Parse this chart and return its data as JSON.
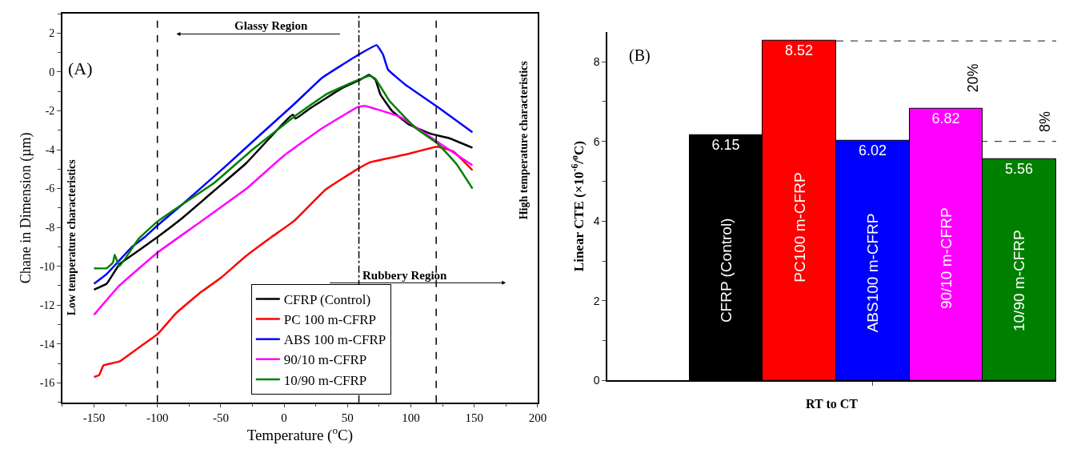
{
  "chart_data": [
    {
      "type": "line",
      "xlabel": "Temperature ($^{o}$C)",
      "ylabel": "Chane in Dimension (µm)",
      "xlim": [
        -175,
        200
      ],
      "xticks": [
        -150,
        -100,
        -50,
        0,
        50,
        100,
        150,
        200
      ],
      "ylim": [
        -17,
        3
      ],
      "yticks": [
        -16,
        -14,
        -12,
        -10,
        -8,
        -6,
        -4,
        -2,
        0,
        2
      ],
      "series": [
        {
          "name": "CFRP (Control)",
          "color": "#000000",
          "x": [
            -150,
            -140,
            -130,
            -115,
            -100,
            -80,
            -55,
            -30,
            0,
            6.8,
            9,
            20,
            45.7,
            60,
            67,
            72,
            76,
            85,
            98.4,
            116,
            130,
            148.6
          ],
          "values": [
            -11.2,
            -10.9,
            -9.9,
            -9.2,
            -8.5,
            -7.5,
            -6.1,
            -4.7,
            -2.6,
            -2.2,
            -2.4,
            -1.9,
            -0.83,
            -0.4,
            -0.15,
            -0.4,
            -1.16,
            -2.0,
            -2.7,
            -3.19,
            -3.4,
            -3.9
          ]
        },
        {
          "name": "PC 100 m-CFRP",
          "color": "#ff0000",
          "x": [
            -150,
            -146,
            -142.5,
            -130,
            -115,
            -100,
            -85,
            -67,
            -50,
            -29.6,
            -10,
            8,
            33,
            58.3,
            67.6,
            96,
            121,
            133.6,
            148.6
          ],
          "values": [
            -15.7,
            -15.6,
            -15.1,
            -14.9,
            -14.2,
            -13.5,
            -12.4,
            -11.4,
            -10.6,
            -9.45,
            -8.5,
            -7.66,
            -6.04,
            -4.98,
            -4.65,
            -4.25,
            -3.84,
            -4.1,
            -5.06
          ]
        },
        {
          "name": "ABS 100 m-CFRP",
          "color": "#0000ff",
          "x": [
            -150,
            -140,
            -130,
            -120,
            -110,
            -100,
            -80,
            -47,
            -20,
            8,
            30,
            58.3,
            73,
            78,
            82,
            96,
            121,
            148.6
          ],
          "values": [
            -10.9,
            -10.4,
            -9.7,
            -9.0,
            -8.5,
            -7.9,
            -6.8,
            -4.9,
            -3.3,
            -1.65,
            -0.3,
            0.87,
            1.38,
            0.9,
            0.12,
            -0.67,
            -1.8,
            -3.1
          ]
        },
        {
          "name": "90/10 m-CFRP",
          "color": "#ff00ff",
          "x": [
            -150,
            -130,
            -100,
            -70,
            -29.6,
            0,
            30,
            58.3,
            64,
            91,
            121,
            148.6
          ],
          "values": [
            -12.5,
            -11.0,
            -9.3,
            -7.9,
            -6.0,
            -4.3,
            -2.9,
            -1.8,
            -1.75,
            -2.3,
            -3.6,
            -4.8
          ]
        },
        {
          "name": "10/90 m-CFRP",
          "color": "#008000",
          "x": [
            -150,
            -140,
            -135,
            -133.7,
            -130,
            -115,
            -100,
            -80,
            -55,
            -25,
            8,
            33,
            55,
            67.6,
            72,
            83,
            103.4,
            121,
            136,
            148.6
          ],
          "values": [
            -10.1,
            -10.1,
            -9.8,
            -9.4,
            -10.0,
            -8.6,
            -7.7,
            -6.8,
            -5.7,
            -4.0,
            -2.3,
            -1.16,
            -0.5,
            -0.2,
            -0.35,
            -1.48,
            -2.87,
            -3.68,
            -4.74,
            -6.0
          ]
        }
      ],
      "ref_lines": [
        {
          "axis": "x",
          "value": -100,
          "line_style": "dashed"
        },
        {
          "axis": "x",
          "value": 59,
          "line_style": "dashdot"
        },
        {
          "axis": "x",
          "value": 120,
          "line_style": "dashed"
        }
      ],
      "annotations": [
        "(A)",
        "Glassy Region",
        "Rubbery Region",
        "Low temperature characteristics",
        "High temperature characteristics"
      ],
      "legend": "bottom",
      "grid": false
    },
    {
      "type": "bar",
      "xlabel": "RT to CT",
      "ylabel": "Linear CTE (×10$^{-6}$/$^{o}$C)",
      "categories": [
        "CFRP (Control)",
        "PC100 m-CFRP",
        "ABS100 m-CFRP",
        "90/10 m-CFRP",
        "10/90 m-CFRP"
      ],
      "values": [
        6.15,
        8.52,
        6.02,
        6.82,
        5.56
      ],
      "colors": [
        "#000000",
        "#ff0000",
        "#0000ff",
        "#ff00ff",
        "#008000"
      ],
      "ylim": [
        0,
        8.75
      ],
      "yticks": [
        0,
        2,
        4,
        6,
        8
      ],
      "data_labels": true,
      "ref_lines": [
        {
          "axis": "y",
          "value": 8.52,
          "line_style": "dashed"
        },
        {
          "axis": "y",
          "value": 6.0,
          "line_style": "dashed"
        }
      ],
      "annotations": [
        "(B)",
        "20%",
        "8%"
      ],
      "tick_labels": "y",
      "legend": false,
      "grid": false
    }
  ]
}
